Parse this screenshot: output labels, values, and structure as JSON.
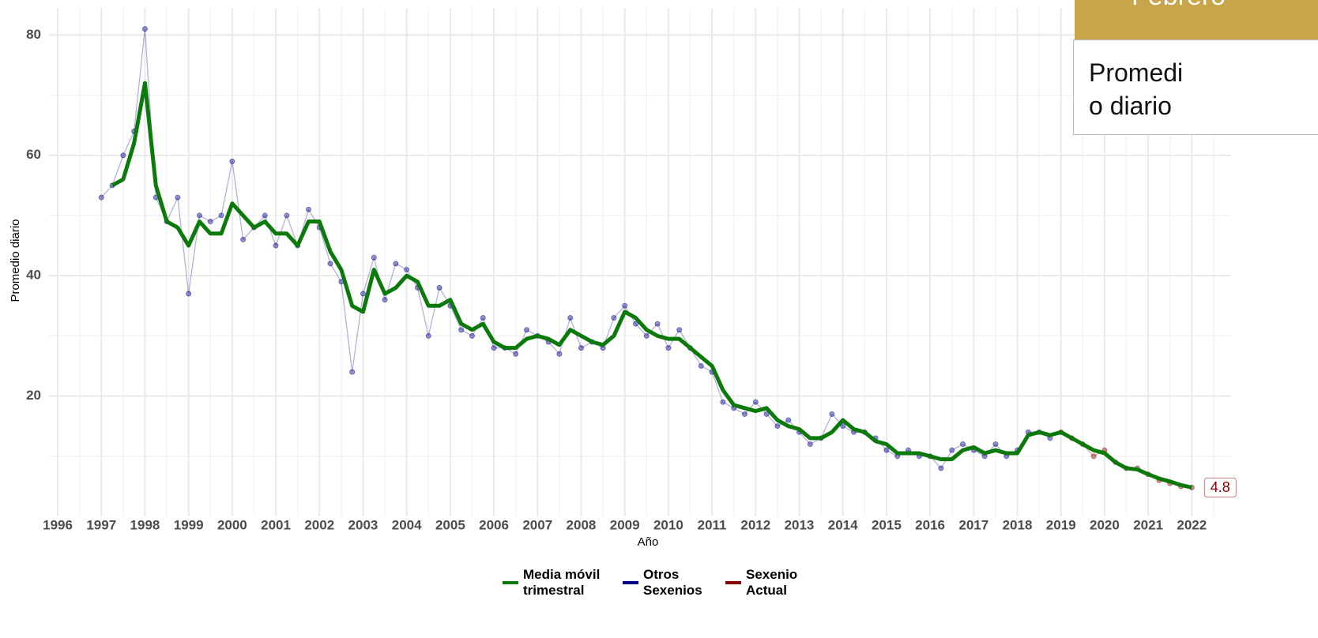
{
  "chart_data": {
    "type": "line",
    "x_label": "Año",
    "y_label": "Promedio diario",
    "x": [
      1997,
      1997.25,
      1997.5,
      1997.75,
      1998,
      1998.25,
      1998.5,
      1998.75,
      1999,
      1999.25,
      1999.5,
      1999.75,
      2000,
      2000.25,
      2000.5,
      2000.75,
      2001,
      2001.25,
      2001.5,
      2001.75,
      2002,
      2002.25,
      2002.5,
      2002.75,
      2003,
      2003.25,
      2003.5,
      2003.75,
      2004,
      2004.25,
      2004.5,
      2004.75,
      2005,
      2005.25,
      2005.5,
      2005.75,
      2006,
      2006.25,
      2006.5,
      2006.75,
      2007,
      2007.25,
      2007.5,
      2007.75,
      2008,
      2008.25,
      2008.5,
      2008.75,
      2009,
      2009.25,
      2009.5,
      2009.75,
      2010,
      2010.25,
      2010.5,
      2010.75,
      2011,
      2011.25,
      2011.5,
      2011.75,
      2012,
      2012.25,
      2012.5,
      2012.75,
      2013,
      2013.25,
      2013.5,
      2013.75,
      2014,
      2014.25,
      2014.5,
      2014.75,
      2015,
      2015.25,
      2015.5,
      2015.75,
      2016,
      2016.25,
      2016.5,
      2016.75,
      2017,
      2017.25,
      2017.5,
      2017.75,
      2018,
      2018.25,
      2018.5,
      2018.75,
      2019,
      2019.25,
      2019.5,
      2019.75,
      2020,
      2020.25,
      2020.5,
      2020.75,
      2021,
      2021.25,
      2021.5,
      2021.75,
      2022
    ],
    "series": [
      {
        "name": "Media móvil trimestral",
        "color": "#0b7a0b",
        "style": "smooth",
        "values": [
          null,
          55,
          56,
          62,
          72,
          55,
          49,
          48,
          45,
          49,
          47,
          47,
          52,
          50,
          48,
          49,
          47,
          47,
          45,
          49,
          49,
          44,
          41,
          35,
          34,
          41,
          37,
          38,
          40,
          39,
          35,
          35,
          36,
          32,
          31,
          32,
          29,
          28,
          28,
          29.5,
          30,
          29.5,
          28.5,
          31,
          30,
          29,
          28.5,
          30,
          34,
          33,
          31,
          30,
          29.5,
          29.5,
          28,
          26.5,
          25,
          21,
          18.5,
          18,
          17.5,
          18,
          16,
          15,
          14.5,
          13,
          13,
          14,
          16,
          14.5,
          14,
          12.5,
          12,
          10.5,
          10.5,
          10.5,
          10,
          9.5,
          9.5,
          11,
          11.5,
          10.5,
          11,
          10.5,
          10.5,
          13.5,
          14,
          13.5,
          14,
          13,
          12,
          11,
          10.5,
          9,
          8,
          7.8,
          7,
          6.3,
          5.8,
          5.2,
          4.8
        ]
      },
      {
        "name": "Otros Sexenios",
        "color": "#00008b",
        "style": "points",
        "values": [
          53,
          55,
          60,
          64,
          81,
          53,
          49,
          53,
          37,
          50,
          49,
          50,
          59,
          46,
          48,
          50,
          45,
          50,
          45,
          51,
          48,
          42,
          39,
          24,
          37,
          43,
          36,
          42,
          41,
          38,
          30,
          38,
          35,
          31,
          30,
          33,
          28,
          28,
          27,
          31,
          30,
          29,
          27,
          33,
          28,
          29,
          28,
          33,
          35,
          32,
          30,
          32,
          28,
          31,
          28,
          25,
          24,
          19,
          18,
          17,
          19,
          17,
          15,
          16,
          14,
          12,
          13,
          17,
          15,
          14,
          14,
          13,
          11,
          10,
          11,
          10,
          10,
          8,
          11,
          12,
          11,
          10,
          12,
          10,
          11,
          14,
          14,
          13,
          null,
          null,
          null,
          null,
          null,
          null,
          null,
          null,
          null,
          null,
          null,
          null,
          null
        ]
      },
      {
        "name": "Sexenio Actual",
        "color": "#8b0000",
        "style": "points",
        "values": [
          null,
          null,
          null,
          null,
          null,
          null,
          null,
          null,
          null,
          null,
          null,
          null,
          null,
          null,
          null,
          null,
          null,
          null,
          null,
          null,
          null,
          null,
          null,
          null,
          null,
          null,
          null,
          null,
          null,
          null,
          null,
          null,
          null,
          null,
          null,
          null,
          null,
          null,
          null,
          null,
          null,
          null,
          null,
          null,
          null,
          null,
          null,
          null,
          null,
          null,
          null,
          null,
          null,
          null,
          null,
          null,
          null,
          null,
          null,
          null,
          null,
          null,
          null,
          null,
          null,
          null,
          null,
          null,
          null,
          null,
          null,
          null,
          null,
          null,
          null,
          null,
          null,
          null,
          null,
          null,
          null,
          null,
          null,
          null,
          null,
          null,
          null,
          null,
          14,
          13,
          12,
          10,
          11,
          9,
          8,
          8,
          7,
          6,
          5.5,
          5,
          4.8
        ]
      }
    ],
    "annotation": 4.8,
    "xlim": [
      1995.8,
      2022.9
    ],
    "xticks": [
      1996,
      1997,
      1998,
      1999,
      2000,
      2001,
      2002,
      2003,
      2004,
      2005,
      2006,
      2007,
      2008,
      2009,
      2010,
      2011,
      2012,
      2013,
      2014,
      2015,
      2016,
      2017,
      2018,
      2019,
      2020,
      2021,
      2022
    ],
    "ylim": [
      0,
      84.5
    ],
    "yticks": [
      20,
      40,
      60,
      80
    ],
    "grid": true,
    "legend": "bottom"
  },
  "overlay": {
    "header": "Febrero",
    "lines": [
      "Promedi",
      "o diario"
    ]
  }
}
